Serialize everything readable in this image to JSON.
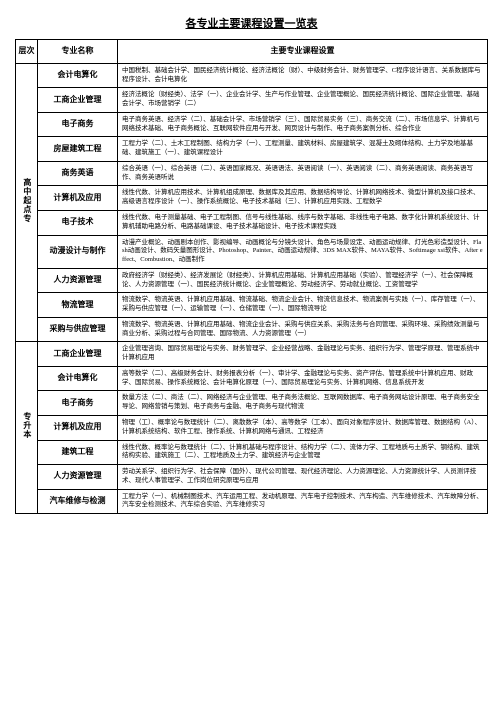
{
  "title": "各专业主要课程设置一览表",
  "headers": {
    "level": "层次",
    "major": "专业名称",
    "courses": "主要专业课程设置"
  },
  "groups": [
    {
      "level": "高中起点专",
      "rows": [
        {
          "major": "会计电算化",
          "desc": "中国税制、基础会计学、国民经济统计概论、经济法概论（财）、中级财务会计、财务管理学、C程序设计语言、关系数据库与程序设计、会计电算化"
        },
        {
          "major": "工商企业管理",
          "desc": "经济法概论（财经类）、法学（一）、企业会计学、生产与作业管理、企业管理概论、国民经济统计概论、国际企业管理、基础会计学、市场营销学（二）"
        },
        {
          "major": "电子商务",
          "desc": "电子商务英语、经济学（二）、基础会计学、市场营销学（三）、国际贸易实务（三）、商务交流（二）、市场信息学、计算机与网络技术基础、电子商务概论、互联网软件应用与开发、网页设计与制作、电子商务案例分析、综合作业"
        },
        {
          "major": "房屋建筑工程",
          "desc": "工程力学（二）、土木工程制图、结构力学（一）、工程测量、建筑材料、房屋建筑学、混凝土及砌体结构、土力学及地基基础、建筑施工（一）、建筑课程设计"
        },
        {
          "major": "商务英语",
          "desc": "综合英语（一）、综合英语（二）、英语国家概况、英语语法、英语阅读（一）、英语阅读（二）、商务英语阅读、商务英语写作、商务英语听说"
        },
        {
          "major": "计算机及应用",
          "desc": "线性代数、计算机应用技术、计算机组成原理、数据库及其应用、数据结构导论、计算机网络技术、微型计算机及接口技术、高级语言程序设计（一）、操作系统概论、电子技术基础（三）、计算机应用实践、工程数学"
        },
        {
          "major": "电子技术",
          "desc": "线性代数、电子测量基础、电子工程制图、信号与线性基础、线序与数字基础、非线性电子电路、数字化计算机系统设计、计算机辅助电路分析、电路基础课设、电子技术基础设计、电子技术课程实践"
        },
        {
          "major": "动漫设计与制作",
          "desc": "动漫产业概论、动画剧本创作、影视编导、动画概论与分镜头设计、角色与场景设定、动画运动规律、灯光色彩造型设计、Flash动画设计、数码矢量图形设计、Photoshop、Painter、动画运动规律、3DS MAX软件、MAYA软件、Softimage xsi软件、After effect、Combustion、动画制作"
        },
        {
          "major": "人力资源管理",
          "desc": "政府经济学（财经类）、经济发展论（财经类）、计算机应用基础、计算机应用基础（实验）、管理经济学（一）、社会保障概论、人力资源管理（一）、国民经济统计概论、企业管理概论、劳动经济学、劳动就业概论、工资管理学"
        },
        {
          "major": "物流管理",
          "desc": "物流数学、物流英语、计算机应用基础、物流基础、物流企业会计、物流信息技术、物流案例与实践（一）、库存管理（一）、采购与供应管理（一）、运输管理（一）、仓储管理（一）、国际物流导论"
        },
        {
          "major": "采购与供应管理",
          "desc": "物流数学、物流英语、计算机应用基础、物流企业会计、采购与供应关系、采购法务与合同管理、采购环境、采购绩效测量与商业分析、采购过程与合同管理、国际物流、人力资源管理（一）"
        }
      ]
    },
    {
      "level": "专升本",
      "rows": [
        {
          "major": "工商企业管理",
          "desc": "企业管理咨询、国际贸易理论与实务、财务管理学、企业经营战略、金融理论与实务、组织行为学、管理学原理、管理系统中计算机应用"
        },
        {
          "major": "会计电算化",
          "desc": "高等数学（二）、高级财务会计、财务报表分析（一）、审计学、金融理论与实务、资产评估、管理系统中计算机应用、财政学、国际贸易、操作系统概论、会计电算化原理（一）、国际贸易理论与实务、计算机网络、信息系统开发"
        },
        {
          "major": "电子商务",
          "desc": "数量方法（二）、商法（二）、网络经济与企业管理、电子商务法概论、互联网数据库、电子商务网站设计原理、电子商务安全导论、网络营销与策划、电子商务与金融、电子商务与现代物流"
        },
        {
          "major": "计算机及应用",
          "desc": "物理（工）、概率论与数理统计（二）、离散数学（本）、高等数学（工本）、面向对象程序设计、数据库管理、数据结构（A）、计算机系统结构、软件工程、操作系统、计算机网络与通讯、工程经济"
        },
        {
          "major": "建筑工程",
          "desc": "线性代数、概率论与数理统计（二）、计算机基础与程序设计、结构力学（二）、流体力学、工程地质与土质学、钢结构、建筑结构实验、建筑施工（二）、工程地质及土力学、建筑经济与企业管理"
        },
        {
          "major": "人力资源管理",
          "desc": "劳动关系学、组织行为学、社会保障（国外）、现代公司管理、现代经济理论、人力资源理论、人力资源统计学、人员测评技术、现代人事管理学、工作岗位研究原理与应用"
        },
        {
          "major": "汽车维修与检测",
          "desc": "工程力学（一）、机械制图技术、汽车运用工程、发动机原理、汽车电子控制技术、汽车构造、汽车维修技术、汽车故障分析、汽车安全检测技术、汽车综合实验、汽车维修实习"
        }
      ]
    }
  ]
}
